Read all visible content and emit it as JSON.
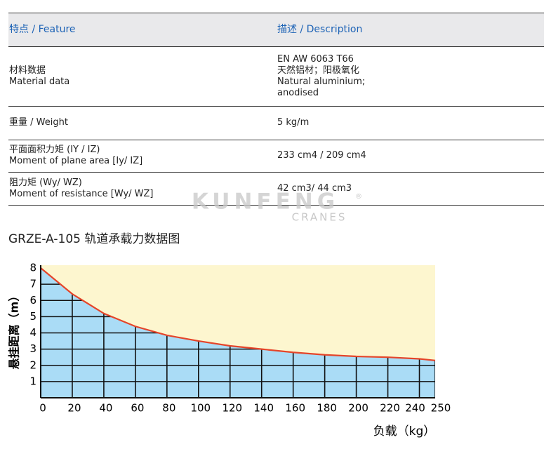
{
  "table": {
    "header": [
      "特点 / Feature",
      "描述 / Description"
    ],
    "rows": [
      [
        [
          "材料数据",
          "Material data"
        ],
        [
          "EN AW 6063 T66",
          "天然铝材；阳极氧化",
          "Natural aluminium;",
          "anodised"
        ]
      ],
      [
        [
          "重量 / Weight"
        ],
        [
          "5 kg/m"
        ]
      ],
      [
        [
          "平面面积力矩 (IY / IZ)",
          "Moment of plane area [Iy/ IZ]"
        ],
        [
          "233 cm4 / 209 cm4"
        ]
      ],
      [
        [
          "阻力矩 (Wy/ WZ)",
          "Moment of resistance [Wy/ WZ]"
        ],
        [
          "42 cm3/ 44 cm3"
        ]
      ]
    ]
  },
  "watermark": {
    "brand": "KUNFENG",
    "mark": "®",
    "sub": "CRANES"
  },
  "chart_title": "GRZE-A-105 轨道承载力数据图",
  "chart_data": {
    "type": "area",
    "x_label": "负载（kg）",
    "y_label": "悬挂距离（m）",
    "x": [
      0,
      20,
      40,
      60,
      80,
      100,
      120,
      140,
      160,
      180,
      200,
      220,
      240,
      250
    ],
    "values": [
      8.0,
      6.4,
      5.2,
      4.4,
      3.85,
      3.5,
      3.2,
      3.0,
      2.8,
      2.65,
      2.55,
      2.5,
      2.4,
      2.3
    ],
    "xlim": [
      0,
      250
    ],
    "ylim": [
      0,
      8
    ],
    "xticks": [
      0,
      20,
      40,
      60,
      80,
      100,
      120,
      140,
      160,
      180,
      200,
      220,
      240,
      250
    ],
    "yticks": [
      1,
      2,
      3,
      4,
      5,
      6,
      7,
      8
    ],
    "grid": true,
    "color": "#aadcf6",
    "background_color": "#fdf6cf",
    "line_color": "#e5452a"
  }
}
